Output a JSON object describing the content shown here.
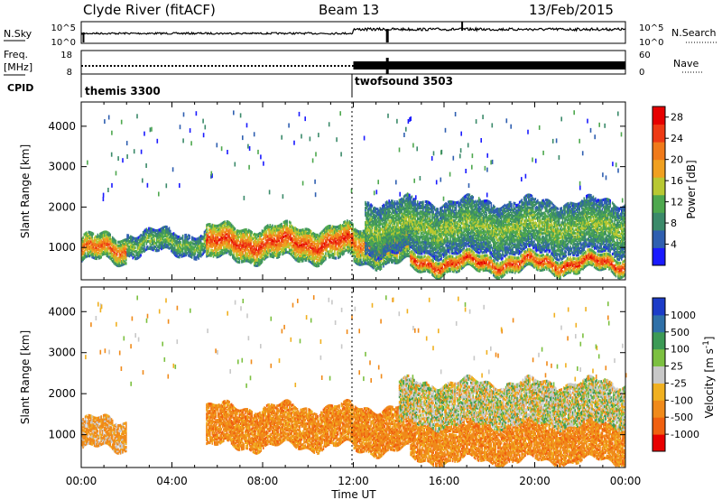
{
  "header": {
    "station": "Clyde River (fitACF)",
    "beam": "Beam 13",
    "date": "13/Feb/2015"
  },
  "noise_panel": {
    "left_label": "N.Sky",
    "left_ticks": [
      "10^5",
      "10^0"
    ],
    "right_label": "N.Search",
    "right_ticks": [
      "10^5",
      "10^0"
    ]
  },
  "freq_panel": {
    "left_label_1": "Freq.",
    "left_label_2": "[MHz]",
    "left_ticks": [
      "18",
      "8"
    ],
    "right_label": "Nave",
    "right_ticks": [
      "60",
      "0"
    ]
  },
  "cpid": {
    "label": "CPID",
    "programs": [
      {
        "name": "themis 3300",
        "start_hour": 0
      },
      {
        "name": "twofsound 3503",
        "start_hour": 12
      }
    ]
  },
  "chart_data": [
    {
      "type": "heatmap",
      "panel": "power",
      "ylabel": "Slant Range [km]",
      "yticks": [
        1000,
        2000,
        3000,
        4000
      ],
      "ylim": [
        200,
        4600
      ],
      "xlim": [
        0,
        24
      ],
      "colorbar_label": "Power [dB]",
      "colorbar_ticks": [
        4,
        8,
        12,
        16,
        20,
        24,
        28
      ],
      "colorbar_range": [
        0,
        30
      ],
      "colors": [
        "#1a1aff",
        "#2f5fb0",
        "#3b8a6a",
        "#4ea84e",
        "#b8c832",
        "#f0a020",
        "#f07a1a",
        "#ee3a14",
        "#e60000"
      ],
      "bands": [
        {
          "t0": 0.0,
          "t1": 2.0,
          "r_lo": 700,
          "r_hi": 1300,
          "db": 24
        },
        {
          "t0": 2.0,
          "t1": 5.5,
          "r_lo": 900,
          "r_hi": 1400,
          "db": 14
        },
        {
          "t0": 5.5,
          "t1": 12.0,
          "r_lo": 750,
          "r_hi": 1550,
          "db": 26
        },
        {
          "t0": 12.0,
          "t1": 14.5,
          "r_lo": 650,
          "r_hi": 1500,
          "db": 22
        },
        {
          "t0": 14.5,
          "t1": 24.0,
          "r_lo": 450,
          "r_hi": 850,
          "db": 27
        },
        {
          "t0": 12.5,
          "t1": 24.0,
          "r_lo": 900,
          "r_hi": 2200,
          "db": 14
        }
      ]
    },
    {
      "type": "heatmap",
      "panel": "velocity",
      "ylabel": "Slant Range [km]",
      "yticks": [
        1000,
        2000,
        3000,
        4000
      ],
      "ylim": [
        200,
        4600
      ],
      "xlim": [
        0,
        24
      ],
      "colorbar_label": "Velocity [m s^-1]",
      "colorbar_ticks": [
        1000,
        500,
        100,
        25,
        -25,
        -100,
        -500,
        -1000
      ],
      "colors": [
        "#1c3cc8",
        "#2f70a8",
        "#3c9a55",
        "#7cc040",
        "#c8c8c8",
        "#f0b020",
        "#f08a1a",
        "#f06010",
        "#e80000"
      ],
      "bands": [
        {
          "t0": 0.0,
          "t1": 2.0,
          "r_lo": 700,
          "r_hi": 1400,
          "vel": -100
        },
        {
          "t0": 5.5,
          "t1": 12.0,
          "r_lo": 750,
          "r_hi": 1700,
          "vel": -300
        },
        {
          "t0": 12.0,
          "t1": 14.5,
          "r_lo": 650,
          "r_hi": 1700,
          "vel": -300
        },
        {
          "t0": 14.5,
          "t1": 24.0,
          "r_lo": 400,
          "r_hi": 1300,
          "vel": -200
        },
        {
          "t0": 14.0,
          "t1": 24.0,
          "r_lo": 1300,
          "r_hi": 2300,
          "vel": 0
        }
      ]
    }
  ],
  "time_axis": {
    "xlabel": "Time UT",
    "ticks": [
      "00:00",
      "04:00",
      "08:00",
      "12:00",
      "16:00",
      "20:00",
      "00:00"
    ]
  }
}
